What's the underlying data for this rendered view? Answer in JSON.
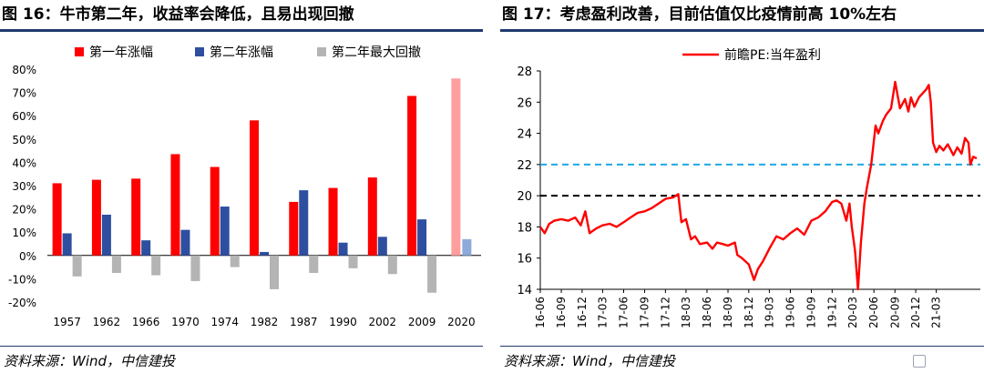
{
  "left": {
    "title": "图 16：牛市第二年，收益率会降低，且易出现回撤",
    "source": "资料来源：Wind，中信建投"
  },
  "right": {
    "title": "图 17：考虑盈利改善，目前估值仅比疫情前高 10%左右",
    "source": "资料来源：Wind，中信建投"
  },
  "colors": {
    "red": "#ff0000",
    "blue": "#2e4fa0",
    "gray": "#b4b4b4",
    "light_red": "#ff9e9e",
    "light_blue": "#8eaadb",
    "cyan": "#1ea8e6",
    "black": "#000000",
    "rule": "#1f3a6e"
  },
  "chart_data": [
    {
      "type": "bar",
      "categories": [
        "1957",
        "1962",
        "1966",
        "1970",
        "1974",
        "1982",
        "1987",
        "1990",
        "2002",
        "2009",
        "2020"
      ],
      "series": [
        {
          "name": "第一年涨幅",
          "values": [
            31,
            32.5,
            33,
            43.5,
            38,
            58,
            23,
            29,
            33.5,
            68.5,
            76
          ]
        },
        {
          "name": "第二年涨幅",
          "values": [
            9.5,
            17.5,
            6.5,
            11,
            21,
            1.5,
            28,
            5.5,
            8,
            15.5,
            7
          ]
        },
        {
          "name": "第二年最大回撤",
          "values": [
            -9,
            -7.5,
            -8.5,
            -11,
            -5,
            -14.5,
            -7.5,
            -5.5,
            -8,
            -16,
            null
          ]
        }
      ],
      "ylim": [
        -20,
        80
      ],
      "yticks": [
        "80%",
        "70%",
        "60%",
        "50%",
        "40%",
        "30%",
        "20%",
        "10%",
        "0%",
        "-10%",
        "-20%"
      ],
      "highlight_category": "2020",
      "legend_position": "top",
      "grid": false
    },
    {
      "type": "line",
      "series": [
        {
          "name": "前瞻PE:当年盈利",
          "points": [
            [
              "2016-06-01",
              18.0
            ],
            [
              "2016-06-20",
              17.6
            ],
            [
              "2016-07-10",
              18.2
            ],
            [
              "2016-08-01",
              18.4
            ],
            [
              "2016-09-01",
              18.5
            ],
            [
              "2016-10-01",
              18.4
            ],
            [
              "2016-11-01",
              18.6
            ],
            [
              "2016-11-25",
              18.1
            ],
            [
              "2016-12-15",
              19.0
            ],
            [
              "2017-01-03",
              17.6
            ],
            [
              "2017-02-01",
              17.9
            ],
            [
              "2017-03-01",
              18.1
            ],
            [
              "2017-04-01",
              18.2
            ],
            [
              "2017-05-01",
              18.0
            ],
            [
              "2017-06-01",
              18.3
            ],
            [
              "2017-07-01",
              18.6
            ],
            [
              "2017-08-01",
              18.9
            ],
            [
              "2017-09-01",
              19.0
            ],
            [
              "2017-10-01",
              19.2
            ],
            [
              "2017-11-01",
              19.5
            ],
            [
              "2017-12-01",
              19.8
            ],
            [
              "2018-01-05",
              19.9
            ],
            [
              "2018-01-26",
              20.1
            ],
            [
              "2018-02-09",
              18.3
            ],
            [
              "2018-03-01",
              18.5
            ],
            [
              "2018-03-23",
              17.2
            ],
            [
              "2018-04-10",
              17.4
            ],
            [
              "2018-05-01",
              16.9
            ],
            [
              "2018-06-01",
              17.0
            ],
            [
              "2018-06-25",
              16.6
            ],
            [
              "2018-07-15",
              17.0
            ],
            [
              "2018-08-10",
              16.9
            ],
            [
              "2018-09-01",
              16.8
            ],
            [
              "2018-10-01",
              17.0
            ],
            [
              "2018-10-12",
              16.2
            ],
            [
              "2018-11-01",
              16.0
            ],
            [
              "2018-12-01",
              15.6
            ],
            [
              "2018-12-24",
              14.6
            ],
            [
              "2019-01-10",
              15.3
            ],
            [
              "2019-02-01",
              15.8
            ],
            [
              "2019-03-01",
              16.6
            ],
            [
              "2019-04-01",
              17.4
            ],
            [
              "2019-05-01",
              17.2
            ],
            [
              "2019-06-01",
              17.6
            ],
            [
              "2019-07-01",
              17.9
            ],
            [
              "2019-08-01",
              17.5
            ],
            [
              "2019-09-01",
              18.4
            ],
            [
              "2019-10-01",
              18.6
            ],
            [
              "2019-11-01",
              19.0
            ],
            [
              "2019-12-01",
              19.6
            ],
            [
              "2019-12-20",
              19.7
            ],
            [
              "2020-01-10",
              19.5
            ],
            [
              "2020-02-01",
              18.4
            ],
            [
              "2020-02-15",
              19.5
            ],
            [
              "2020-02-25",
              18.0
            ],
            [
              "2020-03-10",
              16.5
            ],
            [
              "2020-03-23",
              14.0
            ],
            [
              "2020-04-05",
              17.0
            ],
            [
              "2020-04-20",
              19.5
            ],
            [
              "2020-05-01",
              20.5
            ],
            [
              "2020-05-20",
              22.0
            ],
            [
              "2020-06-08",
              24.5
            ],
            [
              "2020-06-20",
              24.0
            ],
            [
              "2020-07-10",
              24.8
            ],
            [
              "2020-07-25",
              25.2
            ],
            [
              "2020-08-15",
              25.6
            ],
            [
              "2020-09-02",
              27.3
            ],
            [
              "2020-09-23",
              25.6
            ],
            [
              "2020-10-15",
              26.2
            ],
            [
              "2020-10-30",
              25.4
            ],
            [
              "2020-11-10",
              26.3
            ],
            [
              "2020-11-25",
              25.7
            ],
            [
              "2020-12-15",
              26.3
            ],
            [
              "2021-01-15",
              26.8
            ],
            [
              "2021-01-27",
              27.1
            ],
            [
              "2021-02-05",
              26.0
            ],
            [
              "2021-02-15",
              23.4
            ],
            [
              "2021-03-01",
              22.8
            ],
            [
              "2021-03-15",
              23.2
            ],
            [
              "2021-04-01",
              22.9
            ],
            [
              "2021-04-20",
              23.3
            ],
            [
              "2021-05-01",
              23.0
            ],
            [
              "2021-05-15",
              22.6
            ],
            [
              "2021-06-01",
              23.1
            ],
            [
              "2021-06-20",
              22.7
            ],
            [
              "2021-07-05",
              23.7
            ],
            [
              "2021-07-20",
              23.4
            ],
            [
              "2021-07-28",
              22.0
            ],
            [
              "2021-08-10",
              22.5
            ],
            [
              "2021-08-25",
              22.4
            ]
          ]
        }
      ],
      "reference_lines": [
        {
          "y": 22,
          "color": "#1ea8e6",
          "style": "dashed"
        },
        {
          "y": 20,
          "color": "#000000",
          "style": "dashed"
        }
      ],
      "x_range": [
        "2016-06-01",
        "2021-09-10"
      ],
      "ylim": [
        14,
        28
      ],
      "yticks": [
        28,
        26,
        24,
        22,
        20,
        18,
        16,
        14
      ],
      "xticks": [
        "16-06",
        "16-09",
        "16-12",
        "17-03",
        "17-06",
        "17-09",
        "17-12",
        "18-03",
        "18-06",
        "18-09",
        "18-12",
        "19-03",
        "19-06",
        "19-09",
        "19-12",
        "20-03",
        "20-06",
        "20-09",
        "20-12",
        "21-03"
      ],
      "legend_position": "top",
      "grid": false
    }
  ]
}
